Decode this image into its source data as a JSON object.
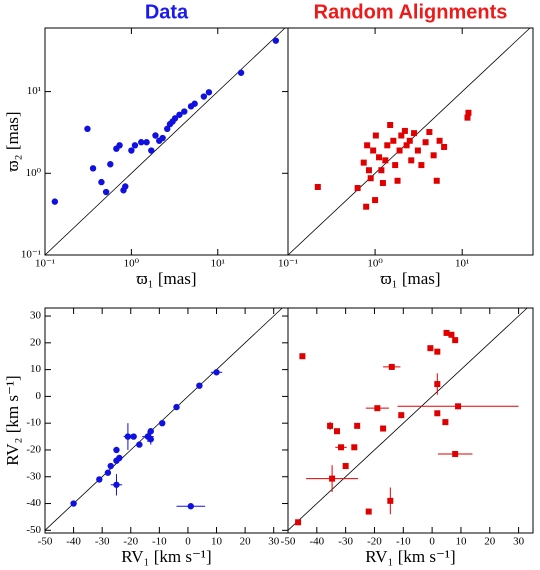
{
  "chart_data": [
    {
      "type": "scatter",
      "title": "Data",
      "title_color": "#1a1aee",
      "xlabel": "ϖ₁ [mas]",
      "ylabel": "ϖ₂ [mas]",
      "log": true,
      "marker": "circle",
      "color": "#1010e0",
      "xlim": [
        0.1,
        65
      ],
      "ylim": [
        0.1,
        60
      ],
      "xticks": [
        {
          "value": 0.1,
          "label": "10⁻¹"
        },
        {
          "value": 1,
          "label": "10⁰"
        },
        {
          "value": 10,
          "label": "10¹"
        }
      ],
      "yticks": [
        {
          "value": 0.1,
          "label": "10⁻¹"
        },
        {
          "value": 1,
          "label": "10⁰"
        },
        {
          "value": 10,
          "label": "10¹"
        }
      ],
      "x": [
        0.13,
        0.31,
        0.36,
        0.45,
        0.51,
        0.57,
        0.67,
        0.73,
        0.81,
        0.85,
        1.0,
        1.1,
        1.3,
        1.5,
        1.7,
        1.9,
        2.1,
        2.3,
        2.6,
        2.8,
        3.0,
        3.2,
        3.6,
        4.1,
        4.9,
        5.4,
        6.9,
        7.9,
        18.6,
        47
      ],
      "values": [
        0.45,
        3.5,
        1.15,
        0.78,
        0.59,
        1.29,
        2.0,
        2.2,
        0.62,
        0.69,
        1.9,
        2.2,
        2.4,
        2.4,
        1.9,
        2.9,
        2.5,
        2.7,
        3.5,
        4.0,
        4.3,
        4.7,
        5.2,
        5.7,
        6.6,
        7.1,
        8.7,
        9.8,
        17,
        42
      ]
    },
    {
      "type": "scatter",
      "title": "Random Alignments",
      "title_color": "#ee1a1a",
      "xlabel": "ϖ₁ [mas]",
      "log": true,
      "marker": "square",
      "color": "#e00000",
      "xlim": [
        0.1,
        65
      ],
      "ylim": [
        0.1,
        60
      ],
      "xticks": [
        {
          "value": 0.1,
          "label": "10⁻¹"
        },
        {
          "value": 1,
          "label": "10⁰"
        },
        {
          "value": 10,
          "label": "10¹"
        }
      ],
      "x": [
        0.22,
        0.63,
        0.74,
        0.79,
        0.81,
        0.85,
        0.89,
        0.95,
        1.0,
        1.02,
        1.11,
        1.18,
        1.23,
        1.31,
        1.38,
        1.49,
        1.62,
        1.7,
        1.81,
        1.91,
        2.0,
        2.2,
        2.3,
        2.5,
        2.6,
        2.8,
        3.1,
        3.4,
        3.8,
        4.2,
        4.7,
        5.1,
        5.5,
        6.2,
        11.5,
        11.8
      ],
      "values": [
        0.68,
        0.66,
        1.35,
        0.39,
        2.2,
        1.09,
        0.87,
        1.9,
        0.47,
        2.9,
        1.57,
        1.09,
        0.76,
        1.44,
        2.2,
        3.9,
        2.5,
        1.26,
        0.81,
        1.9,
        2.9,
        3.3,
        2.2,
        2.5,
        1.44,
        3.1,
        1.9,
        1.26,
        2.4,
        3.2,
        1.66,
        0.81,
        2.5,
        2.1,
        4.8,
        5.5
      ]
    },
    {
      "type": "scatter",
      "xlabel": "RV₁ [km s⁻¹]",
      "ylabel": "RV₂ [km s⁻¹]",
      "log": false,
      "marker": "circle",
      "color": "#1010e0",
      "xlim": [
        -50,
        35
      ],
      "ylim": [
        -51,
        33
      ],
      "xticks": [
        -50,
        -40,
        -30,
        -20,
        -10,
        0,
        10,
        20,
        30
      ],
      "yticks": [
        -50,
        -40,
        -30,
        -20,
        -10,
        0,
        10,
        20,
        30
      ],
      "x": [
        -40,
        -31,
        -28,
        -27,
        -25,
        -25,
        -24,
        -25,
        -21,
        -19,
        -17,
        -14,
        -13,
        -13,
        -9,
        -4,
        4,
        10,
        1
      ],
      "values": [
        -40,
        -31,
        -28.5,
        -26,
        -24,
        -20,
        -23,
        -33,
        -15,
        -15,
        -18,
        -15,
        -16,
        -13,
        -10,
        -4,
        4,
        9,
        -41
      ],
      "xerr": [
        null,
        null,
        null,
        null,
        null,
        null,
        null,
        2,
        1.5,
        1,
        null,
        2,
        null,
        null,
        1,
        null,
        null,
        2,
        5
      ],
      "yerr": [
        null,
        null,
        null,
        null,
        null,
        null,
        null,
        4,
        5,
        null,
        null,
        2,
        2,
        null,
        null,
        null,
        null,
        null,
        null
      ]
    },
    {
      "type": "scatter",
      "xlabel": "RV₁ [km s⁻¹]",
      "log": false,
      "marker": "square",
      "color": "#e00000",
      "xlim": [
        -50,
        35
      ],
      "ylim": [
        -51,
        33
      ],
      "xticks": [
        -50,
        -40,
        -30,
        -20,
        -10,
        0,
        10,
        20,
        30
      ],
      "x": [
        -46.5,
        -45,
        -35.4,
        -34.7,
        -33,
        -31.6,
        -30,
        -27,
        -26,
        -22,
        -19,
        -17,
        -14.5,
        -14,
        -10.7,
        1.8,
        1.8,
        -0.6,
        5,
        6.7,
        8,
        4.6,
        9,
        8,
        1.8
      ],
      "values": [
        -47,
        15,
        -11,
        -30.7,
        -13,
        -19,
        -26,
        -19,
        -11,
        -43,
        -4.4,
        -12,
        -39,
        11,
        -7,
        4.6,
        16.7,
        18,
        23.7,
        23,
        21,
        -9.6,
        -3.7,
        -21.5,
        -6.3
      ],
      "xerr": [
        null,
        null,
        null,
        9,
        null,
        2,
        null,
        null,
        null,
        null,
        4,
        null,
        null,
        3,
        null,
        null,
        null,
        null,
        null,
        null,
        null,
        1,
        21,
        6,
        null
      ],
      "yerr": [
        null,
        null,
        1.5,
        5,
        null,
        1,
        null,
        null,
        null,
        null,
        1,
        null,
        5,
        1,
        null,
        4,
        null,
        null,
        null,
        null,
        null,
        1,
        null,
        null,
        1
      ]
    }
  ]
}
